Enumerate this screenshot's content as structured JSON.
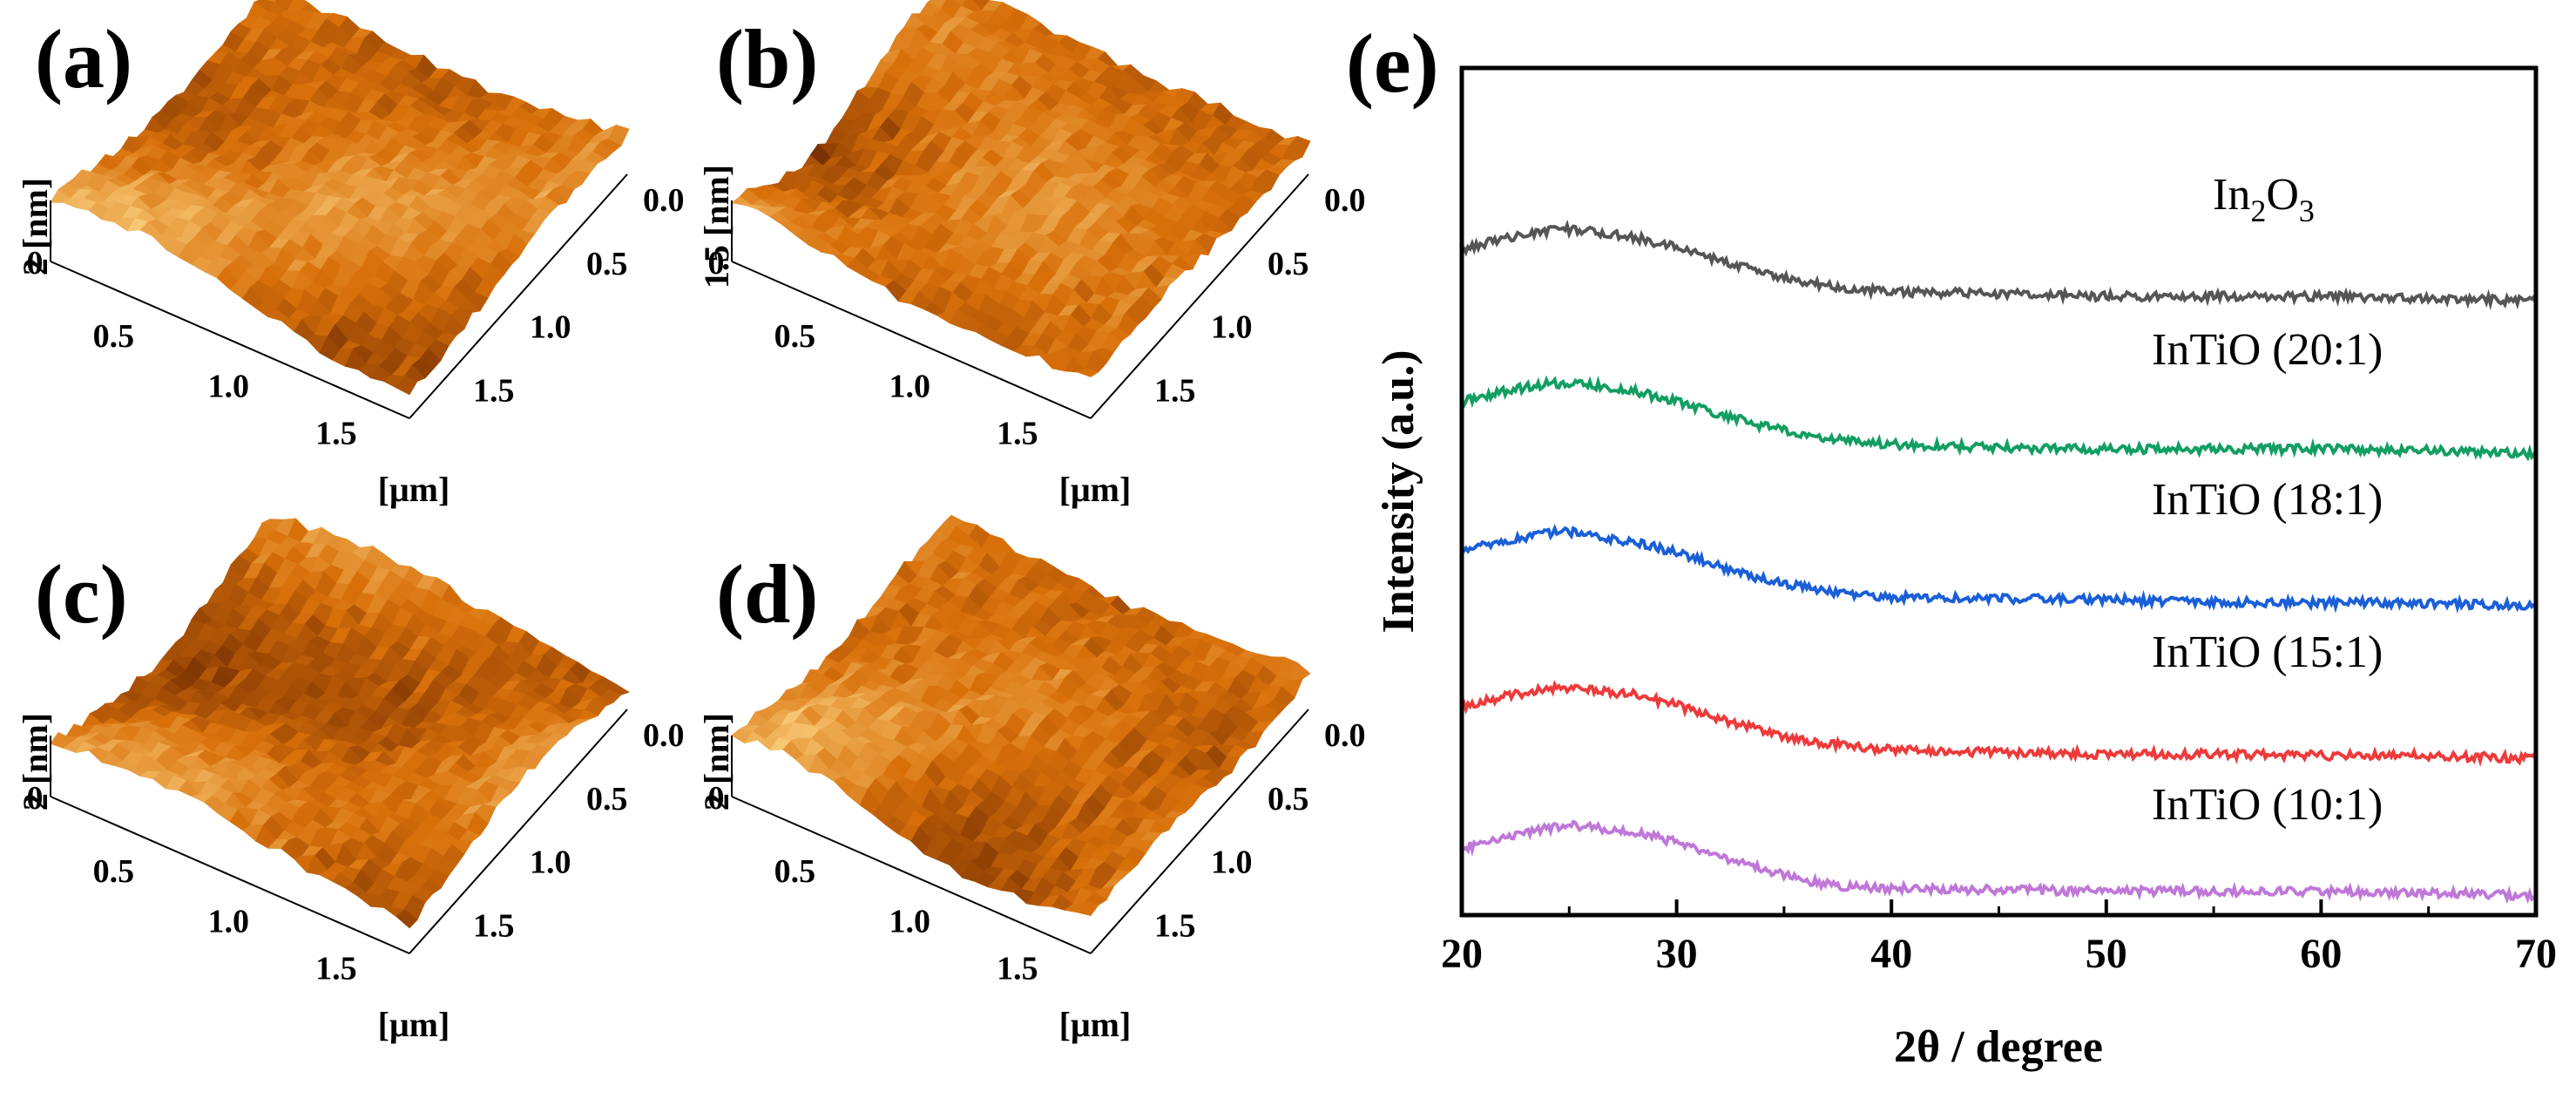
{
  "afm_panels": [
    {
      "label": "(a)",
      "z_axis": {
        "label": "2 [nm]",
        "ticks": [
          "0",
          "2"
        ]
      },
      "x_ticks": [
        "0.5",
        "1.0",
        "1.5"
      ],
      "y_ticks": [
        "0.0",
        "0.5",
        "1.0",
        "1.5"
      ],
      "unit": "[μm]",
      "seed": 11
    },
    {
      "label": "(b)",
      "z_axis": {
        "label": "1.5 [nm]",
        "ticks": [
          "0",
          "1.5"
        ]
      },
      "x_ticks": [
        "0.5",
        "1.0",
        "1.5"
      ],
      "y_ticks": [
        "0.0",
        "0.5",
        "1.0",
        "1.5"
      ],
      "unit": "[μm]",
      "seed": 23
    },
    {
      "label": "(c)",
      "z_axis": {
        "label": "2 [nm]",
        "ticks": [
          "0",
          "2"
        ]
      },
      "x_ticks": [
        "0.5",
        "1.0",
        "1.5"
      ],
      "y_ticks": [
        "0.0",
        "0.5",
        "1.0",
        "1.5"
      ],
      "unit": "[μm]",
      "seed": 37
    },
    {
      "label": "(d)",
      "z_axis": {
        "label": "2 [nm]",
        "ticks": [
          "0",
          "2"
        ]
      },
      "x_ticks": [
        "0.5",
        "1.0",
        "1.5"
      ],
      "y_ticks": [
        "0.0",
        "0.5",
        "1.0",
        "1.5"
      ],
      "unit": "[μm]",
      "seed": 51
    }
  ],
  "chart_data": {
    "panel_label": "(e)",
    "type": "line",
    "title": "",
    "xlabel": "2θ / degree",
    "ylabel": "Intensity (a.u.)",
    "xlim": [
      20,
      70
    ],
    "x_ticks": [
      20,
      30,
      40,
      50,
      60,
      70
    ],
    "y_ticks_shown": false,
    "x": [
      20,
      22,
      24,
      25,
      26,
      28,
      30,
      32,
      34,
      36,
      38,
      40,
      45,
      50,
      55,
      60,
      65,
      70
    ],
    "series": [
      {
        "name": "In2O3",
        "label_main": "In",
        "label_sub1": "2",
        "label_mid": "O",
        "label_sub2": "3",
        "color": "#555555",
        "values": [
          4.08,
          4.15,
          4.2,
          4.21,
          4.2,
          4.16,
          4.09,
          4.01,
          3.93,
          3.86,
          3.82,
          3.8,
          3.79,
          3.77,
          3.77,
          3.77,
          3.76,
          3.74
        ]
      },
      {
        "name": "InTiO (20:1)",
        "label": "InTiO (20:1)",
        "color": "#129e62",
        "values": [
          3.08,
          3.15,
          3.2,
          3.2,
          3.19,
          3.15,
          3.08,
          3.0,
          2.92,
          2.86,
          2.82,
          2.8,
          2.78,
          2.77,
          2.77,
          2.77,
          2.76,
          2.74
        ]
      },
      {
        "name": "InTiO (18:1)",
        "label": "InTiO (18:1)",
        "color": "#1a5fd8",
        "values": [
          2.1,
          2.17,
          2.22,
          2.23,
          2.2,
          2.16,
          2.09,
          2.0,
          1.92,
          1.86,
          1.82,
          1.8,
          1.79,
          1.78,
          1.77,
          1.76,
          1.76,
          1.74
        ]
      },
      {
        "name": "InTiO (15:1)",
        "label": "InTiO (15:1)",
        "color": "#ee3a3a",
        "values": [
          1.08,
          1.15,
          1.2,
          1.2,
          1.19,
          1.16,
          1.09,
          1.0,
          0.92,
          0.86,
          0.82,
          0.8,
          0.78,
          0.77,
          0.77,
          0.76,
          0.76,
          0.74
        ]
      },
      {
        "name": "InTiO (10:1)",
        "label": "InTiO (10:1)",
        "color": "#bf77d8",
        "values": [
          0.15,
          0.23,
          0.28,
          0.3,
          0.29,
          0.26,
          0.19,
          0.1,
          0.01,
          -0.06,
          -0.1,
          -0.11,
          -0.12,
          -0.13,
          -0.13,
          -0.13,
          -0.14,
          -0.16
        ]
      }
    ]
  },
  "colors": {
    "afm_dark": "#5c1e00",
    "afm_mid": "#d8700a",
    "afm_light": "#ffdc8c",
    "axis": "#000000"
  }
}
